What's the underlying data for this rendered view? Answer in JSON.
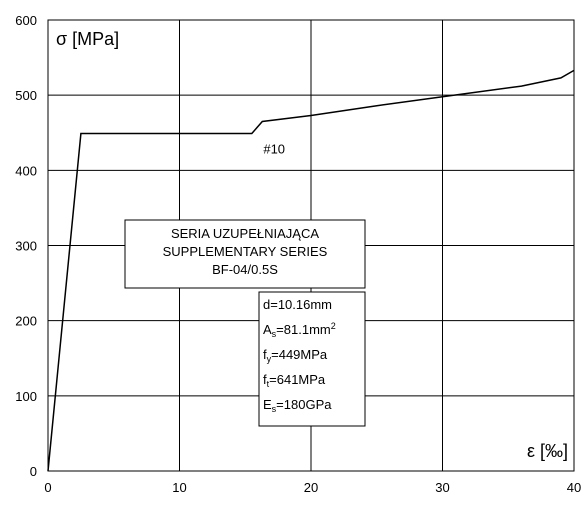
{
  "chart_data": {
    "type": "line",
    "title": "",
    "xlabel": "ε [‰]",
    "ylabel": "σ [MPa]",
    "xlim": [
      0,
      40
    ],
    "ylim": [
      0,
      600
    ],
    "grid": true,
    "x_ticks": [
      "0",
      "10",
      "20",
      "30",
      "40"
    ],
    "y_ticks": [
      "0",
      "100",
      "200",
      "300",
      "400",
      "500",
      "600"
    ],
    "series": [
      {
        "x": [
          0,
          2.5,
          15.5,
          16.3,
          20,
          25,
          30,
          36,
          39,
          40
        ],
        "y": [
          0,
          449,
          449,
          465,
          473,
          486,
          498,
          512,
          523,
          533
        ]
      }
    ],
    "annotations": {
      "curve_label": "#10",
      "series_box": [
        "SERIA UZUPEŁNIAJĄCA",
        "SUPPLEMENTARY SERIES",
        "BF-04/0.5S"
      ],
      "props_box": [
        {
          "main": "d=10.16mm",
          "sub": "",
          "rest": "",
          "sup": ""
        },
        {
          "main": "A",
          "sub": "s",
          "rest": "=81.1mm",
          "sup": "2"
        },
        {
          "main": "f",
          "sub": "y",
          "rest": "=449MPa",
          "sup": ""
        },
        {
          "main": "f",
          "sub": "t",
          "rest": "=641MPa",
          "sup": ""
        },
        {
          "main": "E",
          "sub": "s",
          "rest": "=180GPa",
          "sup": ""
        }
      ]
    }
  }
}
